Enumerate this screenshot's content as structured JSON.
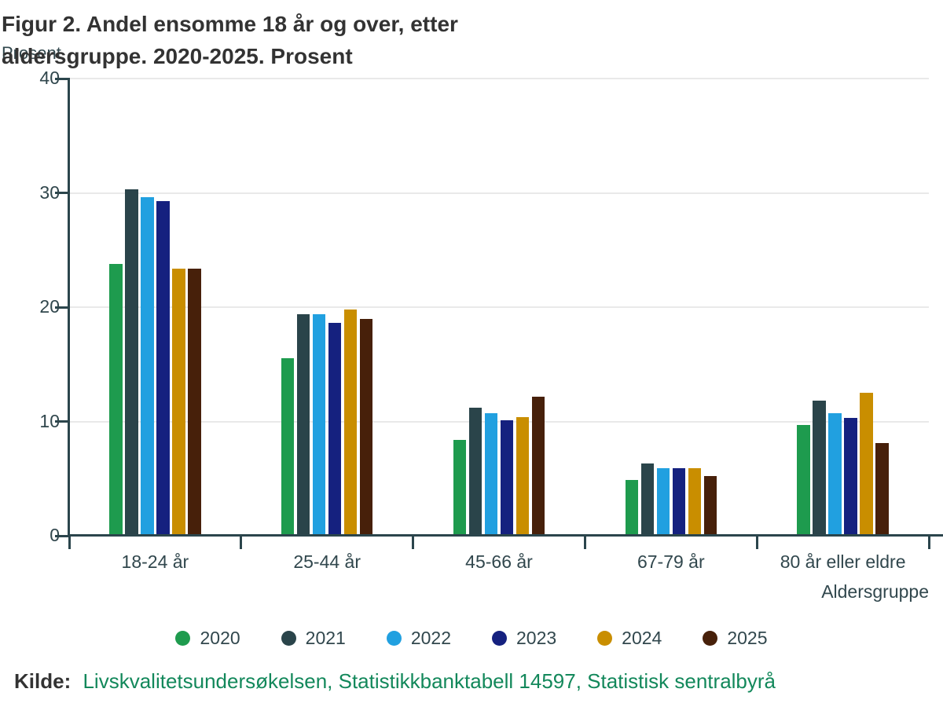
{
  "header": {
    "title_line1": "Figur 2. Andel ensomme 18 år og over, etter",
    "title_line2": "aldersgruppe. 2020-2025. Prosent"
  },
  "chart_data": {
    "type": "bar",
    "title": "Figur 2. Andel ensomme 18 år og over, etter aldersgruppe. 2020-2025. Prosent",
    "ylabel": "Prosent",
    "xlabel": "Aldersgruppe",
    "ylim": [
      0,
      40
    ],
    "yticks": [
      0,
      10,
      20,
      30,
      40
    ],
    "grid": true,
    "legend_position": "bottom",
    "categories": [
      "18-24 år",
      "25-44 år",
      "45-66 år",
      "67-79 år",
      "80 år eller eldre"
    ],
    "series": [
      {
        "name": "2020",
        "color": "#1e9b4e",
        "values": [
          23.8,
          15.5,
          8.4,
          4.9,
          9.7
        ]
      },
      {
        "name": "2021",
        "color": "#2a444a",
        "values": [
          30.3,
          19.4,
          11.2,
          6.3,
          11.8
        ]
      },
      {
        "name": "2022",
        "color": "#21a0e0",
        "values": [
          29.6,
          19.4,
          10.7,
          5.9,
          10.7
        ]
      },
      {
        "name": "2023",
        "color": "#15217f",
        "values": [
          29.3,
          18.6,
          10.1,
          5.9,
          10.3
        ]
      },
      {
        "name": "2024",
        "color": "#c98e00",
        "values": [
          23.4,
          19.8,
          10.4,
          5.9,
          12.5
        ]
      },
      {
        "name": "2025",
        "color": "#47200a",
        "values": [
          23.4,
          19.0,
          12.2,
          5.2,
          8.1
        ]
      }
    ],
    "axis_color": "#2b454c",
    "gridline_color": "#e9e9e9",
    "text_color": "#31474d"
  },
  "source": {
    "label": "Kilde:",
    "text": "Livskvalitetsundersøkelsen, Statistikkbanktabell 14597, Statistisk sentralbyrå",
    "link_color": "#13885b"
  }
}
